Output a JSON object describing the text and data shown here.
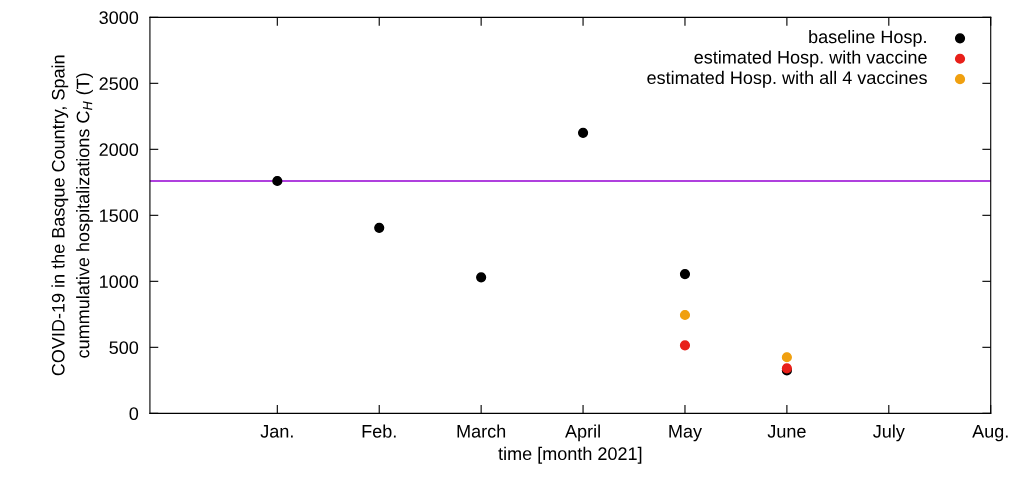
{
  "chart_data": {
    "type": "scatter",
    "xlabel": "time [month 2021]",
    "ylabel": "COVID-19 in the Basque Country, Spain\ncummulative hospitalizations C$_{H}$ (T)",
    "categories": [
      null,
      "Jan.",
      "Feb.",
      "March",
      "April",
      "May",
      "June",
      "July",
      "Aug."
    ],
    "ylim": [
      0,
      3000
    ],
    "yticks": [
      0,
      500,
      1000,
      1500,
      2000,
      2500,
      3000
    ],
    "series": [
      {
        "name": "baseline Hosp.",
        "color": "#000000",
        "values": [
          null,
          1760,
          1405,
          1030,
          2125,
          1055,
          325,
          null,
          null
        ]
      },
      {
        "name": "estimated Hosp. with vaccine",
        "color": "#e8201a",
        "values": [
          null,
          null,
          null,
          null,
          null,
          515,
          340,
          null,
          null
        ]
      },
      {
        "name": "estimated Hosp. with all 4 vaccines",
        "color": "#f0a010",
        "values": [
          null,
          null,
          null,
          null,
          null,
          745,
          425,
          null,
          null
        ]
      }
    ],
    "ref_lines": [
      {
        "axis": "y",
        "value": 1760,
        "color": "#9400d3",
        "line_style": "solid"
      }
    ],
    "marker": "circle",
    "legend": "top right"
  }
}
